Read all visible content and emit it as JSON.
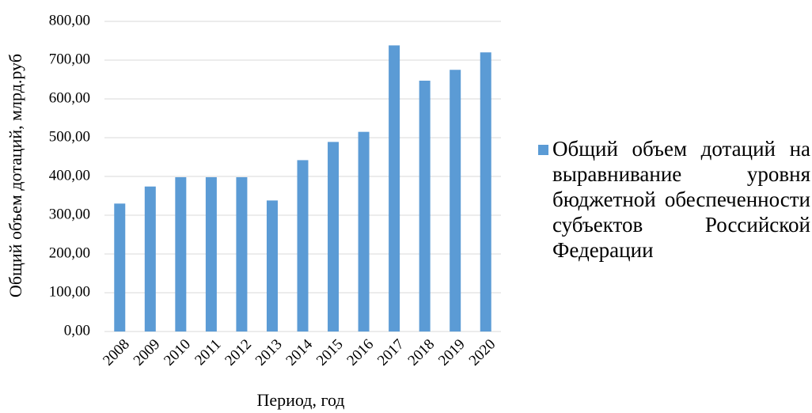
{
  "chart_data": {
    "type": "bar",
    "xlabel": "Период, год",
    "ylabel": "Общий объем дотаций, млрд.руб",
    "categories": [
      "2008",
      "2009",
      "2010",
      "2011",
      "2012",
      "2013",
      "2014",
      "2015",
      "2016",
      "2017",
      "2018",
      "2019",
      "2020"
    ],
    "series": [
      {
        "name": "Общий объем дотаций на выравнивание уровня бюджетной обеспеченности субъектов Российской Федерации",
        "color": "#5b9bd5",
        "values": [
          330,
          374,
          398,
          398,
          398,
          338,
          442,
          489,
          515,
          738,
          647,
          675,
          720
        ]
      }
    ],
    "ylim": [
      0,
      800
    ],
    "yticks": [
      {
        "value": 0,
        "label": "0,00"
      },
      {
        "value": 100,
        "label": "100,00"
      },
      {
        "value": 200,
        "label": "200,00"
      },
      {
        "value": 300,
        "label": "300,00"
      },
      {
        "value": 400,
        "label": "400,00"
      },
      {
        "value": 500,
        "label": "500,00"
      },
      {
        "value": 600,
        "label": "600,00"
      },
      {
        "value": 700,
        "label": "700,00"
      },
      {
        "value": 800,
        "label": "800,00"
      }
    ],
    "grid": true,
    "legend": "right"
  }
}
